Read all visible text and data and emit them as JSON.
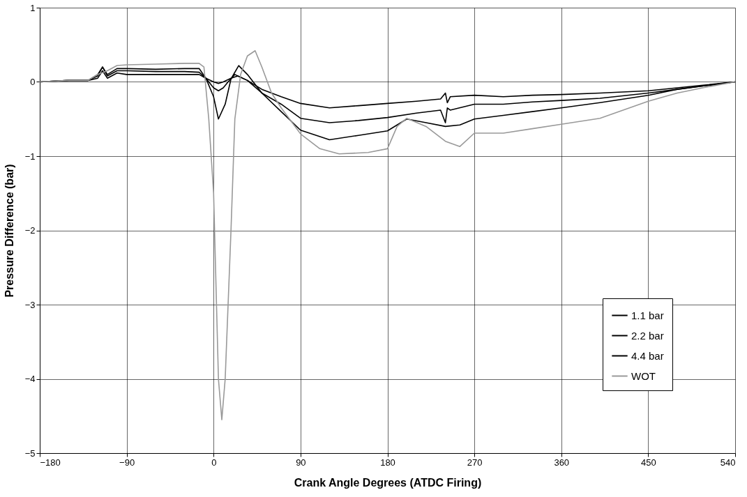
{
  "chart_data": {
    "type": "line",
    "xlabel": "Crank Angle Degrees (ATDC Firing)",
    "ylabel": "Pressure Difference (bar)",
    "xlim": [
      -180,
      540
    ],
    "xticks": [
      -180,
      -90,
      0,
      90,
      180,
      270,
      360,
      450,
      540
    ],
    "ylim": [
      -5,
      1
    ],
    "yticks": [
      -5,
      -4,
      -3,
      -2,
      -1,
      0,
      1
    ],
    "grid": true,
    "legend": "bottom right",
    "series": [
      {
        "name": "1.1 bar",
        "color": "#000000",
        "x": [
          -180,
          -150,
          -130,
          -120,
          -115,
          -110,
          -100,
          -90,
          -60,
          -30,
          -15,
          -8,
          0,
          5,
          10,
          18,
          25,
          35,
          50,
          70,
          90,
          120,
          150,
          180,
          210,
          235,
          240,
          242,
          245,
          270,
          300,
          330,
          360,
          400,
          450,
          480,
          510,
          540
        ],
        "values": [
          0,
          0.02,
          0.02,
          0.05,
          0.15,
          0.05,
          0.12,
          0.1,
          0.1,
          0.1,
          0.1,
          0.05,
          0,
          -0.02,
          0,
          0.05,
          0.08,
          0.02,
          -0.1,
          -0.2,
          -0.29,
          -0.35,
          -0.32,
          -0.29,
          -0.26,
          -0.23,
          -0.15,
          -0.28,
          -0.2,
          -0.18,
          -0.2,
          -0.18,
          -0.17,
          -0.15,
          -0.12,
          -0.08,
          -0.04,
          0
        ]
      },
      {
        "name": "2.2 bar",
        "color": "#000000",
        "x": [
          -180,
          -150,
          -130,
          -120,
          -115,
          -110,
          -100,
          -90,
          -60,
          -30,
          -15,
          -8,
          0,
          5,
          10,
          15,
          22,
          35,
          50,
          70,
          90,
          120,
          150,
          180,
          210,
          235,
          240,
          242,
          245,
          270,
          300,
          330,
          360,
          400,
          450,
          480,
          510,
          540
        ],
        "values": [
          0,
          0.02,
          0.02,
          0.08,
          0.2,
          0.08,
          0.15,
          0.15,
          0.14,
          0.14,
          0.13,
          0.05,
          -0.08,
          -0.12,
          -0.08,
          0,
          0.1,
          0.02,
          -0.15,
          -0.3,
          -0.49,
          -0.55,
          -0.52,
          -0.48,
          -0.42,
          -0.38,
          -0.55,
          -0.35,
          -0.38,
          -0.3,
          -0.3,
          -0.27,
          -0.25,
          -0.22,
          -0.15,
          -0.1,
          -0.05,
          0
        ]
      },
      {
        "name": "4.4 bar",
        "color": "#000000",
        "x": [
          -180,
          -150,
          -130,
          -120,
          -115,
          -110,
          -100,
          -90,
          -60,
          -30,
          -15,
          -8,
          0,
          5,
          12,
          18,
          26,
          35,
          50,
          70,
          90,
          120,
          150,
          180,
          200,
          220,
          240,
          255,
          270,
          300,
          330,
          360,
          400,
          450,
          480,
          510,
          540
        ],
        "values": [
          0,
          0.02,
          0.02,
          0.1,
          0.2,
          0.1,
          0.18,
          0.18,
          0.17,
          0.18,
          0.18,
          0.05,
          -0.2,
          -0.5,
          -0.3,
          0.04,
          0.22,
          0.1,
          -0.15,
          -0.4,
          -0.65,
          -0.78,
          -0.72,
          -0.66,
          -0.5,
          -0.55,
          -0.6,
          -0.58,
          -0.5,
          -0.45,
          -0.4,
          -0.35,
          -0.28,
          -0.18,
          -0.1,
          -0.05,
          0
        ]
      },
      {
        "name": "WOT",
        "color": "#999999",
        "x": [
          -180,
          -150,
          -130,
          -120,
          -110,
          -100,
          -90,
          -60,
          -30,
          -15,
          -10,
          -5,
          0,
          3,
          5,
          8.5,
          12,
          15,
          18,
          22,
          28,
          35,
          43,
          50,
          60,
          70,
          90,
          110,
          130,
          160,
          180,
          190,
          200,
          220,
          240,
          255,
          270,
          300,
          330,
          360,
          400,
          450,
          480,
          510,
          540
        ],
        "values": [
          0,
          0.02,
          0.02,
          0.1,
          0.15,
          0.22,
          0.23,
          0.24,
          0.25,
          0.25,
          0.2,
          -0.5,
          -1.5,
          -3,
          -4,
          -4.55,
          -4,
          -3,
          -2,
          -0.5,
          0.1,
          0.35,
          0.42,
          0.2,
          -0.15,
          -0.35,
          -0.7,
          -0.9,
          -0.97,
          -0.95,
          -0.9,
          -0.6,
          -0.49,
          -0.6,
          -0.8,
          -0.87,
          -0.69,
          -0.69,
          -0.63,
          -0.57,
          -0.49,
          -0.26,
          -0.15,
          -0.07,
          0
        ]
      }
    ]
  }
}
